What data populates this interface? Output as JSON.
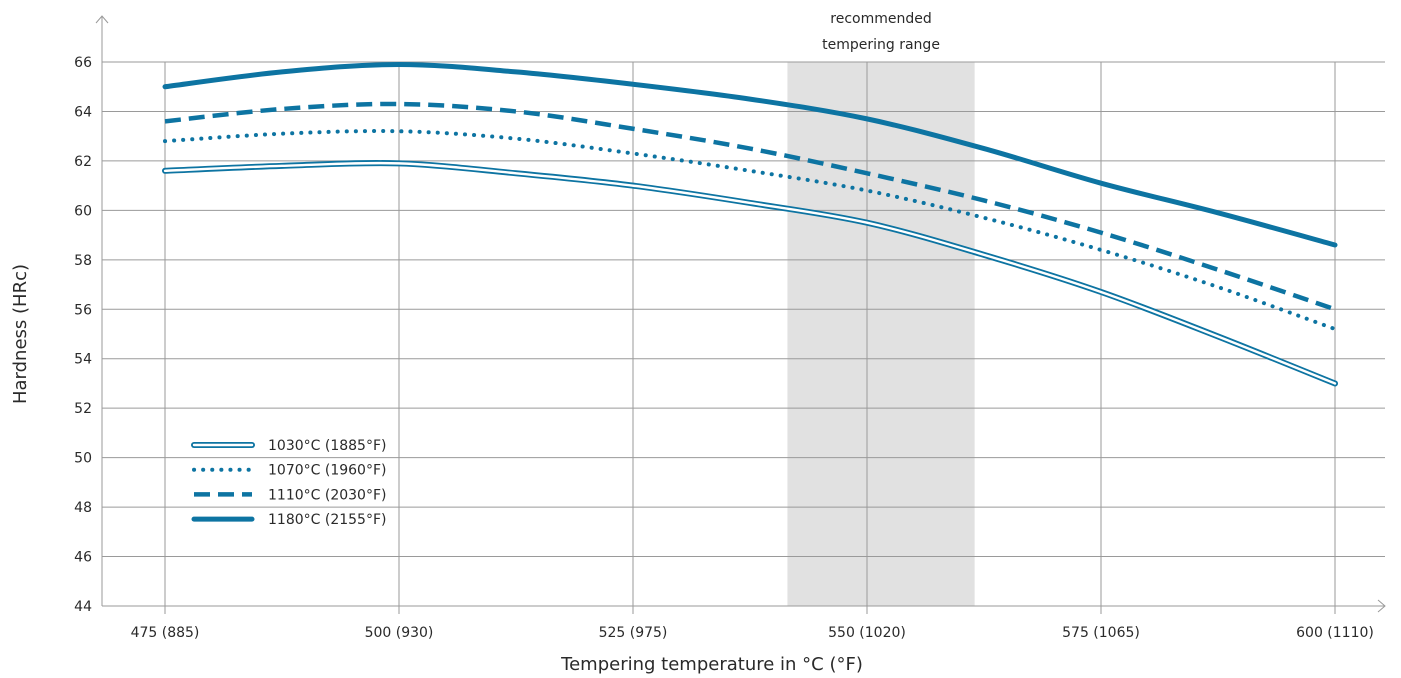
{
  "chart_data": {
    "type": "line",
    "title": "",
    "xlabel": "Tempering temperature in °C (°F)",
    "ylabel": "Hardness (HRc)",
    "xlim": [
      475,
      600
    ],
    "ylim": [
      44,
      66
    ],
    "x_ticks": [
      {
        "value": 475,
        "label": "475 (885)"
      },
      {
        "value": 500,
        "label": "500 (930)"
      },
      {
        "value": 525,
        "label": "525 (975)"
      },
      {
        "value": 550,
        "label": "550 (1020)"
      },
      {
        "value": 575,
        "label": "575 (1065)"
      },
      {
        "value": 600,
        "label": "600 (1110)"
      }
    ],
    "y_ticks": [
      44,
      46,
      48,
      50,
      52,
      54,
      56,
      58,
      60,
      62,
      64,
      66
    ],
    "y_tick_labels": [
      "44",
      "46",
      "48",
      "50",
      "52",
      "54",
      "56",
      "58",
      "60",
      "62",
      "64",
      "66"
    ],
    "grid": true,
    "shaded_region": {
      "x_start": 541.5,
      "x_end": 561.5,
      "label_line1": "recommended",
      "label_line2": "tempering range",
      "color": "#e1e1e1"
    },
    "legend_position": "lower-left",
    "line_color": "#0d74a2",
    "series": [
      {
        "name": "1030°C (1885°F)",
        "style": "double",
        "x": [
          475,
          487.5,
          500,
          512.5,
          525,
          537.5,
          550,
          562.5,
          575,
          587.5,
          600
        ],
        "y": [
          61.6,
          61.8,
          61.9,
          61.5,
          61.0,
          60.3,
          59.5,
          58.2,
          56.7,
          54.9,
          53.0
        ]
      },
      {
        "name": "1070°C (1960°F)",
        "style": "dotted",
        "x": [
          475,
          487.5,
          500,
          512.5,
          525,
          537.5,
          550,
          562.5,
          575,
          587.5,
          600
        ],
        "y": [
          62.8,
          63.1,
          63.2,
          62.9,
          62.3,
          61.6,
          60.8,
          59.7,
          58.4,
          56.9,
          55.2
        ]
      },
      {
        "name": "1110°C (2030°F)",
        "style": "dashed",
        "x": [
          475,
          487.5,
          500,
          512.5,
          525,
          537.5,
          550,
          562.5,
          575,
          587.5,
          600
        ],
        "y": [
          63.6,
          64.1,
          64.3,
          64.0,
          63.3,
          62.5,
          61.5,
          60.4,
          59.1,
          57.6,
          56.0
        ]
      },
      {
        "name": "1180°C (2155°F)",
        "style": "solid",
        "x": [
          475,
          487.5,
          500,
          512.5,
          525,
          537.5,
          550,
          562.5,
          575,
          587.5,
          600
        ],
        "y": [
          65.0,
          65.6,
          65.9,
          65.6,
          65.1,
          64.5,
          63.7,
          62.5,
          61.1,
          59.9,
          58.6
        ]
      }
    ]
  }
}
